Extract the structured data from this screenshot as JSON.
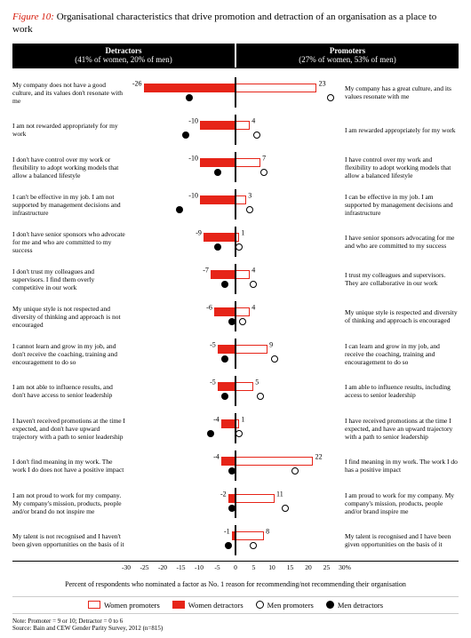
{
  "figure": {
    "lead": "Figure 10:",
    "title": " Organisational characteristics that drive promotion and detraction of an organisation as a place to work"
  },
  "headers": {
    "left_title": "Detractors",
    "left_sub": "(41% of women, 20% of men)",
    "right_title": "Promoters",
    "right_sub": "(27% of women, 53% of men)"
  },
  "chart": {
    "type": "diverging-bar",
    "xmin": -30,
    "xmax": 30,
    "xticks": [
      -30,
      -25,
      -20,
      -15,
      -10,
      -5,
      0,
      5,
      10,
      15,
      20,
      25,
      30
    ],
    "xtick_labels": [
      "-30",
      "-25",
      "-20",
      "-15",
      "-10",
      "-5",
      "0",
      "5",
      "10",
      "15",
      "20",
      "25",
      "30%"
    ],
    "xaxis_label": "Percent of respondents who nominated a factor as No. 1 reason for recommending/not recommending their organisation",
    "colors": {
      "women_detractors": "#e62418",
      "women_promoters_border": "#e62418",
      "women_promoters_fill": "#ffffff",
      "men_detractors": "#000000",
      "men_promoters_border": "#000000",
      "men_promoters_fill": "#ffffff",
      "axis": "#000000",
      "background": "#ffffff"
    },
    "rows": [
      {
        "left": "My company does not have a good culture, and its values don't resonate with me",
        "right": "My company has a great culture, and its values resonate with me",
        "women_det": -26,
        "women_pro": 23,
        "men_det": -13,
        "men_pro": 27
      },
      {
        "left": "I am not rewarded appropriately for my work",
        "right": "I am rewarded appropriately for my work",
        "women_det": -10,
        "women_pro": 4,
        "men_det": -14,
        "men_pro": 6
      },
      {
        "left": "I don't have control over my work or flexibility to adopt working models that allow a balanced lifestyle",
        "right": "I have control over my work and flexibility to adopt working models that allow a balanced lifestyle",
        "women_det": -10,
        "women_pro": 7,
        "men_det": -5,
        "men_pro": 8
      },
      {
        "left": "I can't be effective in my job. I am not supported by management decisions and infrastructure",
        "right": "I can be effective in my job. I am supported by management decisions and infrastructure",
        "women_det": -10,
        "women_pro": 3,
        "men_det": -16,
        "men_pro": 4
      },
      {
        "left": "I don't have senior sponsors who advocate for me and who are committed to my success",
        "right": "I have senior sponsors advocating for me and who are committed to my success",
        "women_det": -9,
        "women_pro": 1,
        "men_det": -5,
        "men_pro": 1
      },
      {
        "left": "I don't trust my colleagues and supervisors. I find them overly competitive in our work",
        "right": "I trust my colleagues and supervisors. They are collaborative in our work",
        "women_det": -7,
        "women_pro": 4,
        "men_det": -3,
        "men_pro": 5
      },
      {
        "left": "My unique style is not respected and diversity of thinking and approach is not encouraged",
        "right": "My unique style is respected and diversity of thinking and approach is encouraged",
        "women_det": -6,
        "women_pro": 4,
        "men_det": -1,
        "men_pro": 2
      },
      {
        "left": "I cannot learn and grow in my job, and don't receive the coaching, training and encouragement to do so",
        "right": "I can learn and grow in my job, and receive the coaching, training and encouragement to do so",
        "women_det": -5,
        "women_pro": 9,
        "men_det": -3,
        "men_pro": 11
      },
      {
        "left": "I am not able to influence results, and don't have access to senior leadership",
        "right": "I am able to influence results, including access to senior leadership",
        "women_det": -5,
        "women_pro": 5,
        "men_det": -3,
        "men_pro": 7
      },
      {
        "left": "I haven't received promotions at the time I expected, and don't have upward trajectory with a path to senior leadership",
        "right": "I have received promotions at the time I expected, and have an upward trajectory with a path to senior leadership",
        "women_det": -4,
        "women_pro": 1,
        "men_det": -7,
        "men_pro": 1
      },
      {
        "left": "I don't find meaning in my work. The work I do does not have a positive impact",
        "right": "I find meaning in my work. The work I do has a positive impact",
        "women_det": -4,
        "women_pro": 22,
        "men_det": -1,
        "men_pro": 17
      },
      {
        "left": "I am not proud to work for my company. My company's mission, products, people and/or brand do not inspire me",
        "right": "I am proud to work for my company. My company's mission, products, people and/or brand inspire me",
        "women_det": -2,
        "women_pro": 11,
        "men_det": -1,
        "men_pro": 14
      },
      {
        "left": "My talent is not recognised and I haven't been given opportunities on the basis of it",
        "right": "My talent is recognised and I have been given opportunities on the basis of it",
        "women_det": -1,
        "women_pro": 8,
        "men_det": -2,
        "men_pro": 5
      }
    ]
  },
  "legend": {
    "women_promoters": "Women promoters",
    "women_detractors": "Women detractors",
    "men_promoters": "Men promoters",
    "men_detractors": "Men detractors"
  },
  "footnote": {
    "line1": "Note: Promoter = 9 or 10; Detractor = 0 to 6",
    "line2": "Source: Bain and CEW Gender Parity Survey, 2012 (n=815)"
  }
}
